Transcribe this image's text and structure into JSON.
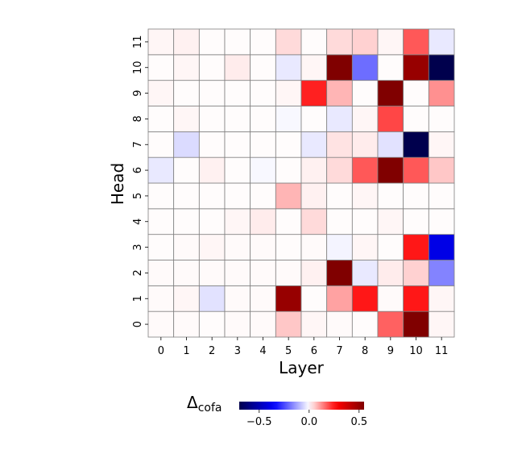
{
  "chart_data": {
    "type": "heatmap",
    "title": "",
    "xlabel": "Layer",
    "ylabel": "Head",
    "x_categories": [
      "0",
      "1",
      "2",
      "3",
      "4",
      "5",
      "6",
      "7",
      "8",
      "9",
      "10",
      "11"
    ],
    "y_categories": [
      "0",
      "1",
      "2",
      "3",
      "4",
      "5",
      "6",
      "7",
      "8",
      "9",
      "10",
      "11"
    ],
    "y_order": "bottom-to-top",
    "values_rows_by_head": [
      [
        0.005,
        0.005,
        0.003,
        0.005,
        0.005,
        0.06,
        0.01,
        0.005,
        0.003,
        0.17,
        0.62,
        0.01
      ],
      [
        0.005,
        0.01,
        -0.04,
        0.005,
        0.005,
        0.5,
        0.003,
        0.1,
        0.25,
        0.005,
        0.25,
        0.01
      ],
      [
        0.005,
        0.005,
        0.005,
        0.005,
        0.005,
        0.005,
        0.015,
        0.55,
        -0.03,
        0.02,
        0.05,
        -0.17
      ],
      [
        0.003,
        0.005,
        0.01,
        0.005,
        0.005,
        0.003,
        0.005,
        -0.015,
        0.01,
        0.003,
        0.25,
        -0.4
      ],
      [
        0.003,
        0.003,
        0.003,
        0.01,
        0.02,
        0.003,
        0.04,
        0.003,
        0.003,
        0.01,
        0.003,
        0.003
      ],
      [
        0.003,
        0.003,
        0.003,
        0.003,
        0.003,
        0.08,
        0.015,
        0.003,
        0.01,
        0.003,
        0.003,
        0.003
      ],
      [
        -0.03,
        0.003,
        0.015,
        0.003,
        -0.01,
        0.003,
        0.015,
        0.04,
        0.18,
        0.62,
        0.18,
        0.06
      ],
      [
        0.003,
        -0.05,
        0.003,
        0.003,
        0.003,
        0.003,
        -0.03,
        0.03,
        0.02,
        -0.04,
        -0.7,
        0.01
      ],
      [
        0.003,
        0.01,
        0.003,
        0.003,
        0.003,
        -0.01,
        0.003,
        -0.03,
        0.01,
        0.2,
        0.003,
        0.003
      ],
      [
        0.01,
        0.003,
        0.003,
        0.003,
        0.003,
        0.01,
        0.24,
        0.08,
        0.003,
        0.62,
        0.003,
        0.12
      ],
      [
        0.003,
        0.01,
        0.003,
        0.02,
        0.003,
        -0.03,
        0.01,
        0.62,
        -0.2,
        0.003,
        0.5,
        -0.7
      ],
      [
        0.01,
        0.015,
        0.003,
        0.003,
        0.003,
        0.04,
        0.003,
        0.04,
        0.05,
        0.01,
        0.18,
        -0.03
      ]
    ],
    "colormap": "seismic",
    "vmin": -0.7,
    "vmax": 0.55,
    "colorbar": {
      "label_main": "Δ",
      "label_sub": "cofa",
      "ticks": [
        "−0.5",
        "0.0",
        "0.5"
      ],
      "tick_values": [
        -0.5,
        0.0,
        0.5
      ],
      "orientation": "horizontal",
      "placement": "bottom"
    },
    "gridlines": true,
    "grid_color": "#808080"
  }
}
